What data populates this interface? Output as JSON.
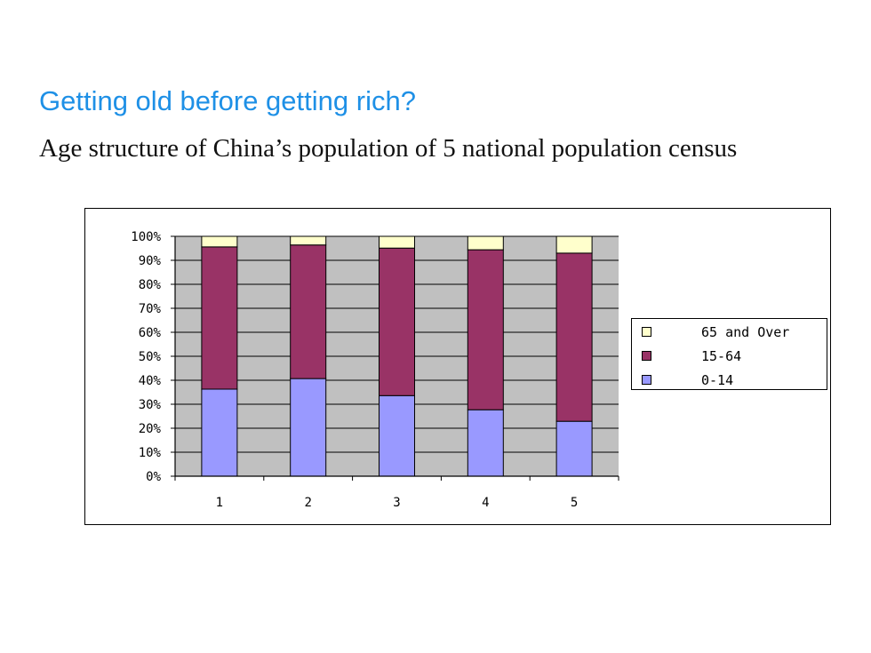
{
  "slide": {
    "title": "Getting old before getting rich?",
    "subtitle": "Age structure of China’s population of 5 national population census"
  },
  "colors": {
    "title": "#1e90e6",
    "plot_background": "#c0c0c0"
  },
  "chart_data": {
    "type": "bar",
    "stacked": true,
    "percent": true,
    "categories": [
      "1",
      "2",
      "3",
      "4",
      "5"
    ],
    "series": [
      {
        "name": "0-14",
        "color": "#9999ff",
        "values": [
          36.3,
          40.7,
          33.6,
          27.7,
          22.9
        ]
      },
      {
        "name": "15-64",
        "color": "#993366",
        "values": [
          59.3,
          55.7,
          61.5,
          66.7,
          70.1
        ]
      },
      {
        "name": "65 and Over",
        "color": "#ffffcc",
        "values": [
          4.4,
          3.6,
          4.9,
          5.6,
          7.0
        ]
      }
    ],
    "ylim": [
      0,
      100
    ],
    "yticks": [
      "0%",
      "10%",
      "20%",
      "30%",
      "40%",
      "50%",
      "60%",
      "70%",
      "80%",
      "90%",
      "100%"
    ],
    "grid": true,
    "legend": {
      "placement": "right",
      "order": [
        "65 and Over",
        "15-64",
        "0-14"
      ]
    }
  }
}
